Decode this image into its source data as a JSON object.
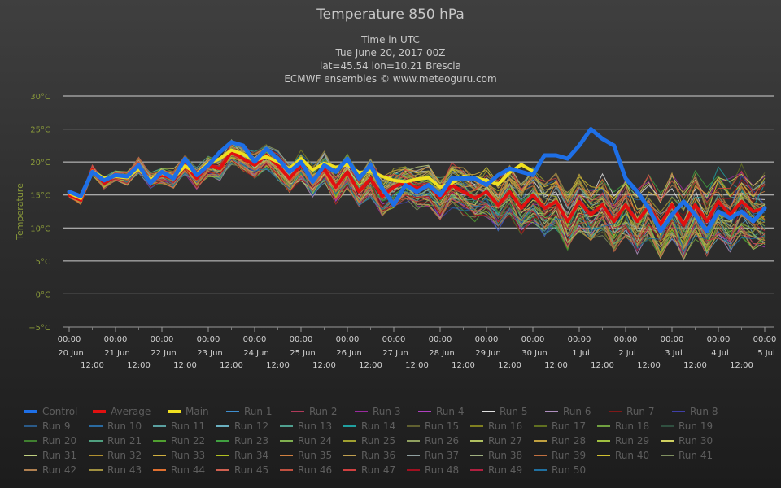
{
  "chart_data": {
    "type": "line",
    "title": "Temperature 850 hPa",
    "subtitles": [
      "Time in UTC",
      "Tue June 20, 2017 00Z",
      "lat=45.54 lon=10.21 Brescia",
      "ECMWF ensembles © www.meteoguru.com"
    ],
    "ylabel": "Temperature",
    "ylim": [
      -5,
      30
    ],
    "yticks": [
      -5,
      0,
      5,
      10,
      15,
      20,
      25,
      30
    ],
    "ytick_labels": [
      "−5°C",
      "0°C",
      "5°C",
      "10°C",
      "15°C",
      "20°C",
      "25°C",
      "30°C"
    ],
    "xlim_hours": [
      0,
      360
    ],
    "x_major_labels": [
      {
        "time": "00:00",
        "date": "20 Jun"
      },
      {
        "time": "00:00",
        "date": "21 Jun"
      },
      {
        "time": "00:00",
        "date": "22 Jun"
      },
      {
        "time": "00:00",
        "date": "23 Jun"
      },
      {
        "time": "00:00",
        "date": "24 Jun"
      },
      {
        "time": "00:00",
        "date": "25 Jun"
      },
      {
        "time": "00:00",
        "date": "26 Jun"
      },
      {
        "time": "00:00",
        "date": "27 Jun"
      },
      {
        "time": "00:00",
        "date": "28 Jun"
      },
      {
        "time": "00:00",
        "date": "29 Jun"
      },
      {
        "time": "00:00",
        "date": "30 Jun"
      },
      {
        "time": "00:00",
        "date": "1 Jul"
      },
      {
        "time": "00:00",
        "date": "2 Jul"
      },
      {
        "time": "00:00",
        "date": "3 Jul"
      },
      {
        "time": "00:00",
        "date": "4 Jul"
      },
      {
        "time": "00:00",
        "date": "5 Jul"
      }
    ],
    "x_minor_label": "12:00",
    "grid": true,
    "legend_position": "bottom",
    "series": [
      {
        "name": "Control",
        "color": "#1e6fe6",
        "width": 5,
        "x": [
          0,
          6,
          12,
          18,
          24,
          30,
          36,
          42,
          48,
          54,
          60,
          66,
          72,
          78,
          84,
          90,
          96,
          102,
          108,
          114,
          120,
          126,
          132,
          138,
          144,
          150,
          156,
          162,
          168,
          174,
          180,
          186,
          192,
          198,
          204,
          210,
          216,
          222,
          228,
          234,
          240,
          246,
          252,
          258,
          264,
          270,
          276,
          282,
          288,
          294,
          300,
          306,
          312,
          318,
          324,
          330,
          336,
          342,
          348,
          354,
          360
        ],
        "y": [
          15.5,
          14.8,
          18.5,
          17.2,
          18,
          17.8,
          19.5,
          16.8,
          18.5,
          17.5,
          20.5,
          18,
          19.5,
          21.5,
          23,
          22.5,
          20,
          22,
          20.5,
          18.5,
          20,
          17,
          19.5,
          18.5,
          20.5,
          17.5,
          19.5,
          16,
          13.5,
          16.5,
          15.5,
          16.5,
          15,
          17.5,
          17.5,
          17.5,
          16.5,
          18,
          19,
          18.5,
          18,
          21,
          21,
          20.5,
          22.5,
          25,
          23.5,
          22.5,
          17.5,
          15.5,
          13,
          9.5,
          12,
          14,
          12,
          9.5,
          12.5,
          11.5,
          12.5,
          11,
          13
        ]
      },
      {
        "name": "Average",
        "color": "#e01010",
        "width": 4,
        "x": [
          0,
          6,
          12,
          18,
          24,
          30,
          36,
          42,
          48,
          54,
          60,
          66,
          72,
          78,
          84,
          90,
          96,
          102,
          108,
          114,
          120,
          126,
          132,
          138,
          144,
          150,
          156,
          162,
          168,
          174,
          180,
          186,
          192,
          198,
          204,
          210,
          216,
          222,
          228,
          234,
          240,
          246,
          252,
          258,
          264,
          270,
          276,
          282,
          288,
          294,
          300,
          306,
          312,
          318,
          324,
          330,
          336,
          342,
          348,
          354,
          360
        ],
        "y": [
          15,
          14.2,
          18.8,
          16.8,
          18,
          17.6,
          19.5,
          17.2,
          18,
          17.5,
          19.5,
          17.5,
          19.5,
          19,
          21.5,
          20.5,
          19.5,
          21,
          19.5,
          17.5,
          19.5,
          17.2,
          19,
          16.2,
          18.5,
          15.5,
          17.5,
          14.8,
          16.2,
          17,
          16,
          16.5,
          14.5,
          16.5,
          15.5,
          14.5,
          15.5,
          13.5,
          15.5,
          13,
          15,
          13,
          14,
          11,
          14,
          12,
          13.5,
          11,
          13.5,
          11,
          13.2,
          10.5,
          13.5,
          10.5,
          13.5,
          11,
          14,
          12,
          14,
          12.5,
          13
        ]
      },
      {
        "name": "Main",
        "color": "#f0e020",
        "width": 4,
        "x": [
          0,
          6,
          12,
          18,
          24,
          30,
          36,
          42,
          48,
          54,
          60,
          66,
          72,
          78,
          84,
          90,
          96,
          102,
          108,
          114,
          120,
          126,
          132,
          138,
          144,
          150,
          156,
          162,
          168,
          174,
          180,
          186,
          192,
          198,
          204,
          210,
          216,
          222,
          228,
          234,
          240
        ],
        "y": [
          15.3,
          14.5,
          18.6,
          17.5,
          17.8,
          17.6,
          19,
          17.3,
          18.3,
          17.6,
          19.4,
          18.2,
          19.8,
          20.5,
          21.8,
          21.2,
          20.2,
          20.8,
          20,
          19,
          20.5,
          18.8,
          19.8,
          19.2,
          19.6,
          18.4,
          18.6,
          17.8,
          17.2,
          17,
          17.4,
          17.6,
          16.2,
          16.8,
          17.8,
          17.6,
          17.2,
          16.6,
          18.4,
          19.6,
          18.6
        ]
      }
    ],
    "ensemble_runs": [
      {
        "name": "Run 1",
        "color": "#3f8fd0"
      },
      {
        "name": "Run 2",
        "color": "#b03a5a"
      },
      {
        "name": "Run 3",
        "color": "#9a2a9e"
      },
      {
        "name": "Run 4",
        "color": "#b040c0"
      },
      {
        "name": "Run 5",
        "color": "#e0e0e0"
      },
      {
        "name": "Run 6",
        "color": "#b090c0"
      },
      {
        "name": "Run 7",
        "color": "#801818"
      },
      {
        "name": "Run 8",
        "color": "#4040a8"
      },
      {
        "name": "Run 9",
        "color": "#2a5a88"
      },
      {
        "name": "Run 10",
        "color": "#2a6aa0"
      },
      {
        "name": "Run 11",
        "color": "#5aa0a0"
      },
      {
        "name": "Run 12",
        "color": "#6ab0c0"
      },
      {
        "name": "Run 13",
        "color": "#50a090"
      },
      {
        "name": "Run 14",
        "color": "#20a0a0"
      },
      {
        "name": "Run 15",
        "color": "#606030"
      },
      {
        "name": "Run 16",
        "color": "#808020"
      },
      {
        "name": "Run 17",
        "color": "#607020"
      },
      {
        "name": "Run 18",
        "color": "#70a040"
      },
      {
        "name": "Run 19",
        "color": "#305040"
      },
      {
        "name": "Run 20",
        "color": "#408030"
      },
      {
        "name": "Run 21",
        "color": "#50a080"
      },
      {
        "name": "Run 22",
        "color": "#50a030"
      },
      {
        "name": "Run 23",
        "color": "#40a040"
      },
      {
        "name": "Run 24",
        "color": "#80b050"
      },
      {
        "name": "Run 25",
        "color": "#a0a030"
      },
      {
        "name": "Run 26",
        "color": "#90a060"
      },
      {
        "name": "Run 27",
        "color": "#b0c060"
      },
      {
        "name": "Run 28",
        "color": "#c0a040"
      },
      {
        "name": "Run 29",
        "color": "#a0c040"
      },
      {
        "name": "Run 30",
        "color": "#d0d060"
      },
      {
        "name": "Run 31",
        "color": "#c0d080"
      },
      {
        "name": "Run 32",
        "color": "#b09030"
      },
      {
        "name": "Run 33",
        "color": "#d0b040"
      },
      {
        "name": "Run 34",
        "color": "#b0c020"
      },
      {
        "name": "Run 35",
        "color": "#d08040"
      },
      {
        "name": "Run 36",
        "color": "#c0a050"
      },
      {
        "name": "Run 37",
        "color": "#90a0a0"
      },
      {
        "name": "Run 38",
        "color": "#a0b080"
      },
      {
        "name": "Run 39",
        "color": "#c07040"
      },
      {
        "name": "Run 40",
        "color": "#d0c030"
      },
      {
        "name": "Run 41",
        "color": "#809060"
      },
      {
        "name": "Run 42",
        "color": "#b08050"
      },
      {
        "name": "Run 43",
        "color": "#a09040"
      },
      {
        "name": "Run 44",
        "color": "#e07030"
      },
      {
        "name": "Run 45",
        "color": "#d06050"
      },
      {
        "name": "Run 46",
        "color": "#c05040"
      },
      {
        "name": "Run 47",
        "color": "#d04040"
      },
      {
        "name": "Run 48",
        "color": "#a01020"
      },
      {
        "name": "Run 49",
        "color": "#b02040"
      },
      {
        "name": "Run 50",
        "color": "#2070a0"
      }
    ]
  }
}
